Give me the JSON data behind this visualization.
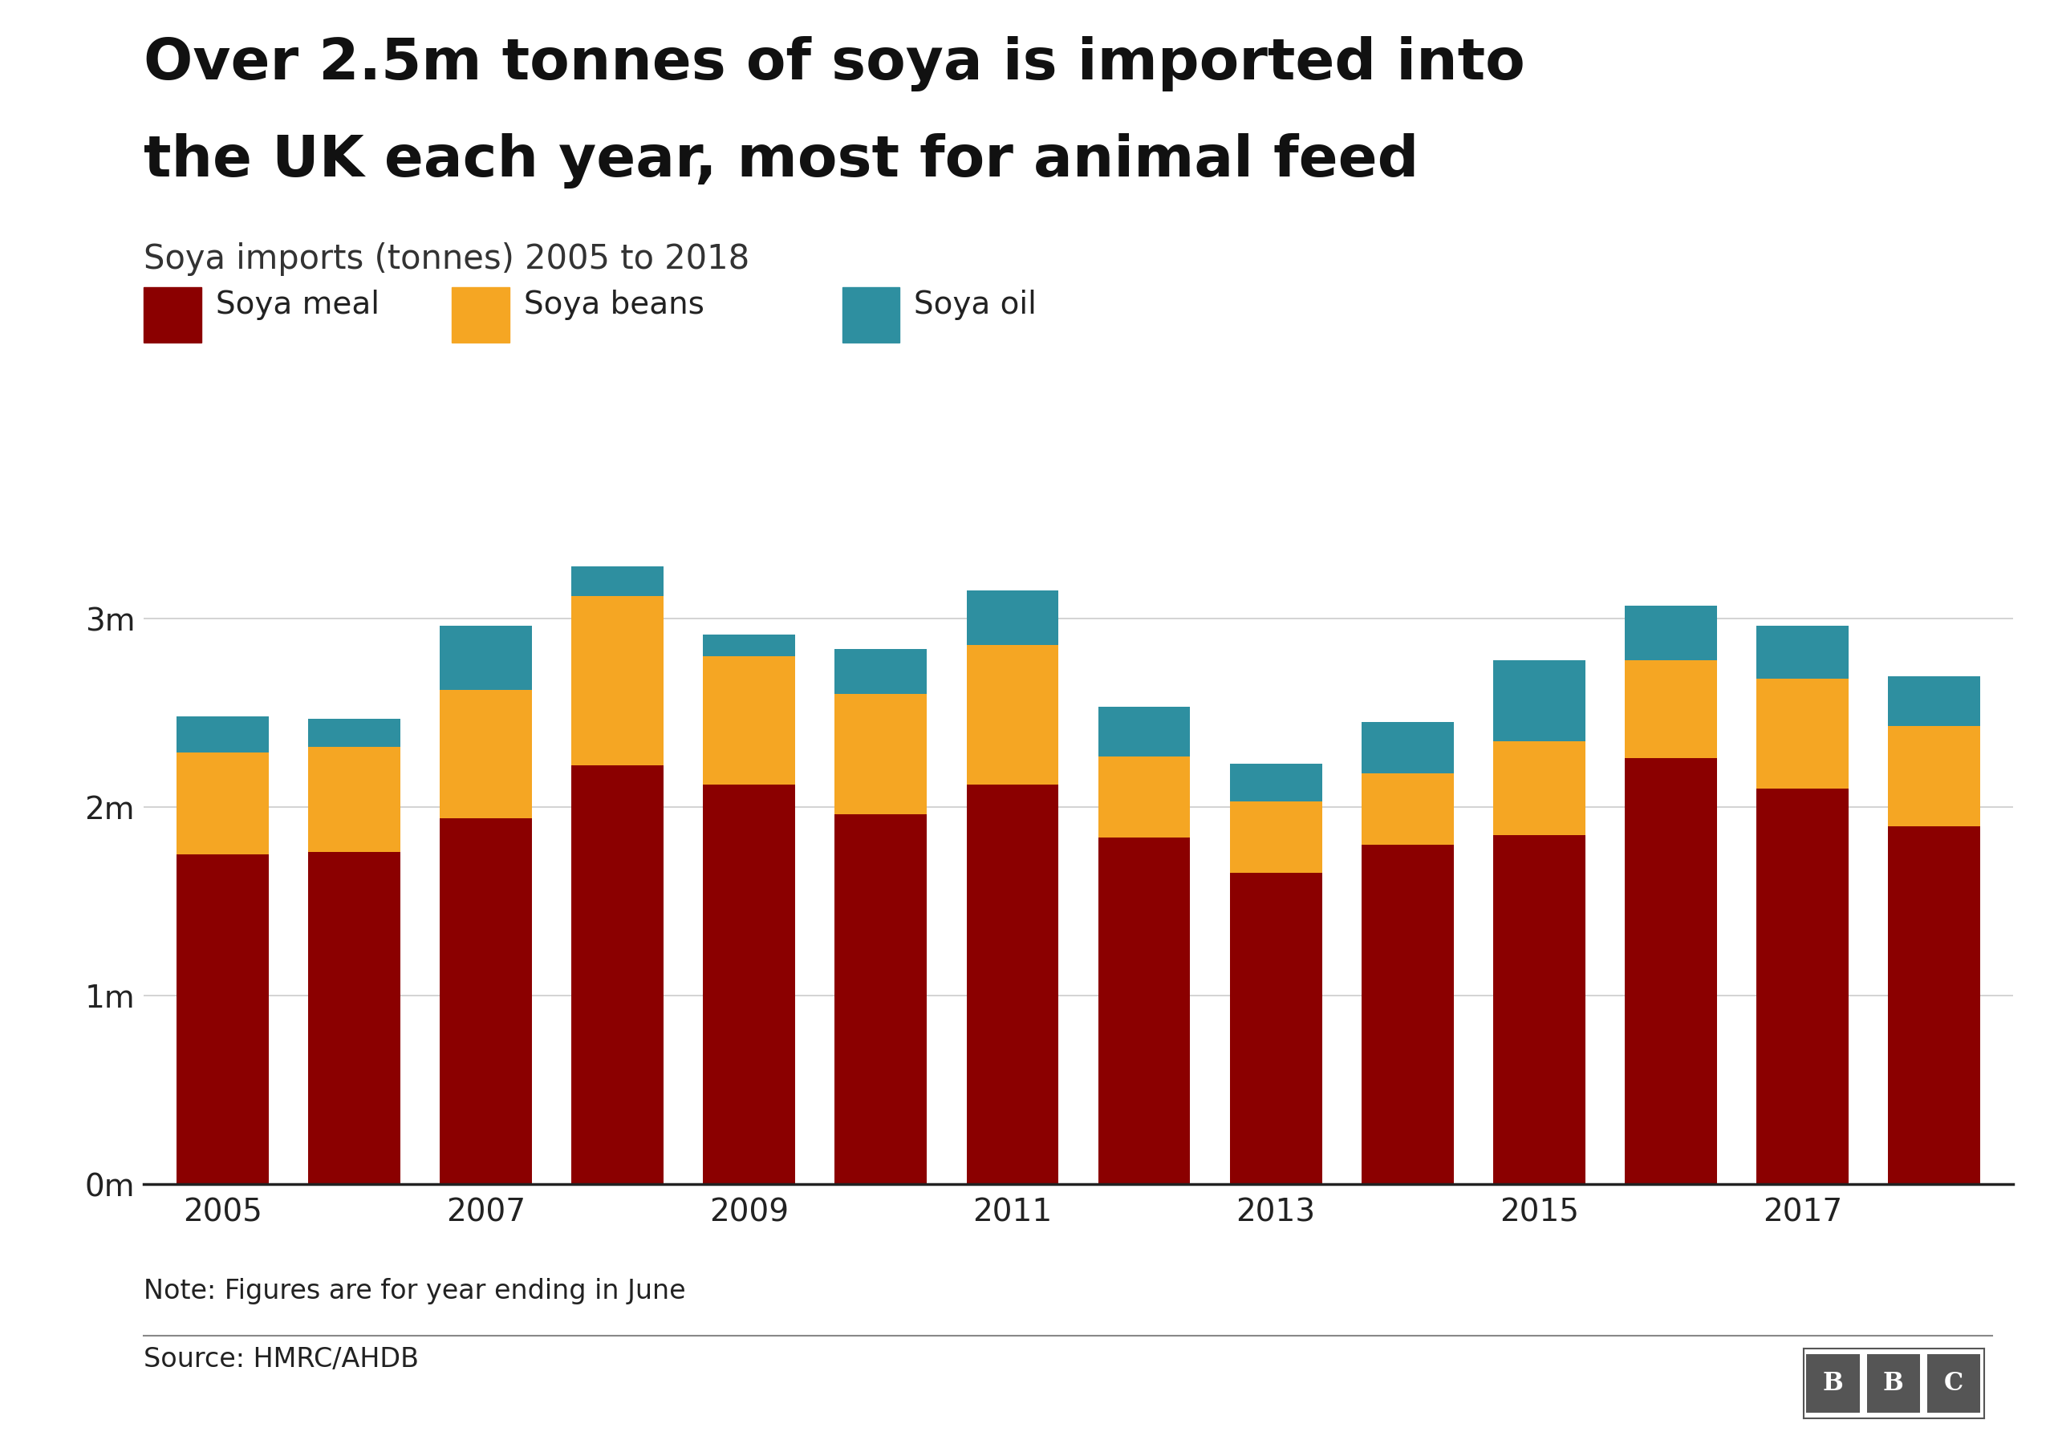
{
  "title_line1": "Over 2.5m tonnes of soya is imported into",
  "title_line2": "the UK each year, most for animal feed",
  "subtitle": "Soya imports (tonnes) 2005 to 2018",
  "years": [
    2005,
    2006,
    2007,
    2008,
    2009,
    2010,
    2011,
    2012,
    2013,
    2014,
    2015,
    2016,
    2017,
    2018
  ],
  "xtick_labels": [
    "2005",
    "",
    "2007",
    "",
    "2009",
    "",
    "2011",
    "",
    "2013",
    "",
    "2015",
    "",
    "2017",
    ""
  ],
  "soya_meal": [
    1750000,
    1760000,
    1940000,
    2220000,
    2120000,
    1960000,
    2120000,
    1840000,
    1650000,
    1800000,
    1850000,
    2260000,
    2100000,
    1900000
  ],
  "soya_beans": [
    540000,
    560000,
    680000,
    900000,
    680000,
    640000,
    740000,
    430000,
    380000,
    380000,
    500000,
    520000,
    580000,
    530000
  ],
  "soya_oil": [
    190000,
    150000,
    340000,
    155000,
    115000,
    240000,
    290000,
    260000,
    200000,
    270000,
    430000,
    290000,
    280000,
    265000
  ],
  "color_meal": "#8B0000",
  "color_beans": "#F5A623",
  "color_oil": "#2E8FA0",
  "legend_labels": [
    "Soya meal",
    "Soya beans",
    "Soya oil"
  ],
  "note": "Note: Figures are for year ending in June",
  "source": "Source: HMRC/AHDB",
  "background_color": "#ffffff",
  "ylim": [
    0,
    3600000
  ],
  "yticks": [
    0,
    1000000,
    2000000,
    3000000
  ],
  "ytick_labels": [
    "0m",
    "1m",
    "2m",
    "3m"
  ],
  "axis_line_color": "#222222",
  "grid_color": "#cccccc",
  "title_fontsize": 52,
  "subtitle_fontsize": 30,
  "legend_fontsize": 28,
  "tick_fontsize": 28,
  "note_fontsize": 24,
  "source_fontsize": 24
}
